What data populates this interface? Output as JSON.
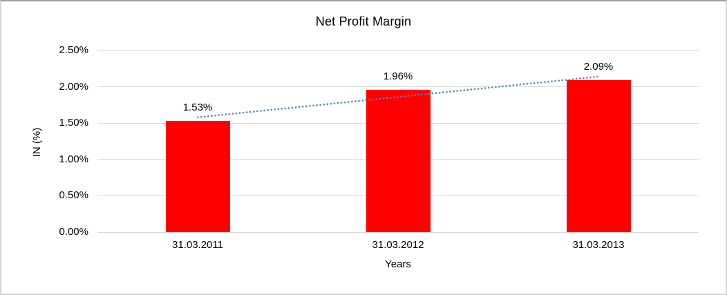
{
  "chart_data": {
    "type": "bar",
    "title": "Net Profit Margin",
    "xlabel": "Years",
    "ylabel": "IN (%)",
    "categories": [
      "31.03.2011",
      "31.03.2012",
      "31.03.2013"
    ],
    "values": [
      1.53,
      1.96,
      2.09
    ],
    "data_labels": [
      "1.53%",
      "1.96%",
      "2.09%"
    ],
    "ylim": [
      0,
      2.5
    ],
    "ytick_labels": [
      "0.00%",
      "0.50%",
      "1.00%",
      "1.50%",
      "2.00%",
      "2.50%"
    ],
    "grid": true,
    "legend": false,
    "bar_color": "#ff0000",
    "gridline_color": "#d9d9d9",
    "text_color": "#000000",
    "trendline": {
      "type": "linear",
      "style": "dotted",
      "color": "#4f85c4"
    }
  }
}
